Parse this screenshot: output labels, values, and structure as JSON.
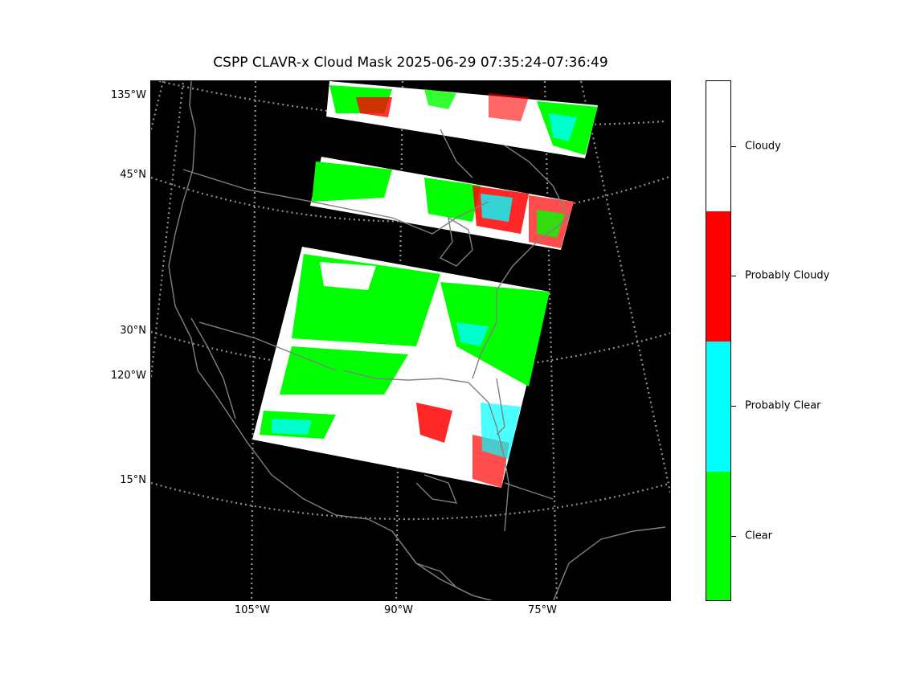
{
  "title": "CSPP CLAVR-x Cloud Mask 2025-06-29 07:35:24-07:36:49",
  "lat_labels": [
    "135°W",
    "45°N",
    "30°N",
    "120°W",
    "15°N"
  ],
  "lon_labels": [
    "105°W",
    "90°W",
    "75°W"
  ],
  "colorbar": {
    "categories": [
      "Cloudy",
      "Probably Cloudy",
      "Probably Clear",
      "Clear"
    ],
    "colors": {
      "Cloudy": "#ffffff",
      "Probably Cloudy": "#ff0000",
      "Probably Clear": "#00ffff",
      "Clear": "#00ff00"
    }
  },
  "map_colors": {
    "background": "#000000",
    "coastline": "#808080",
    "graticule": "#909090"
  }
}
